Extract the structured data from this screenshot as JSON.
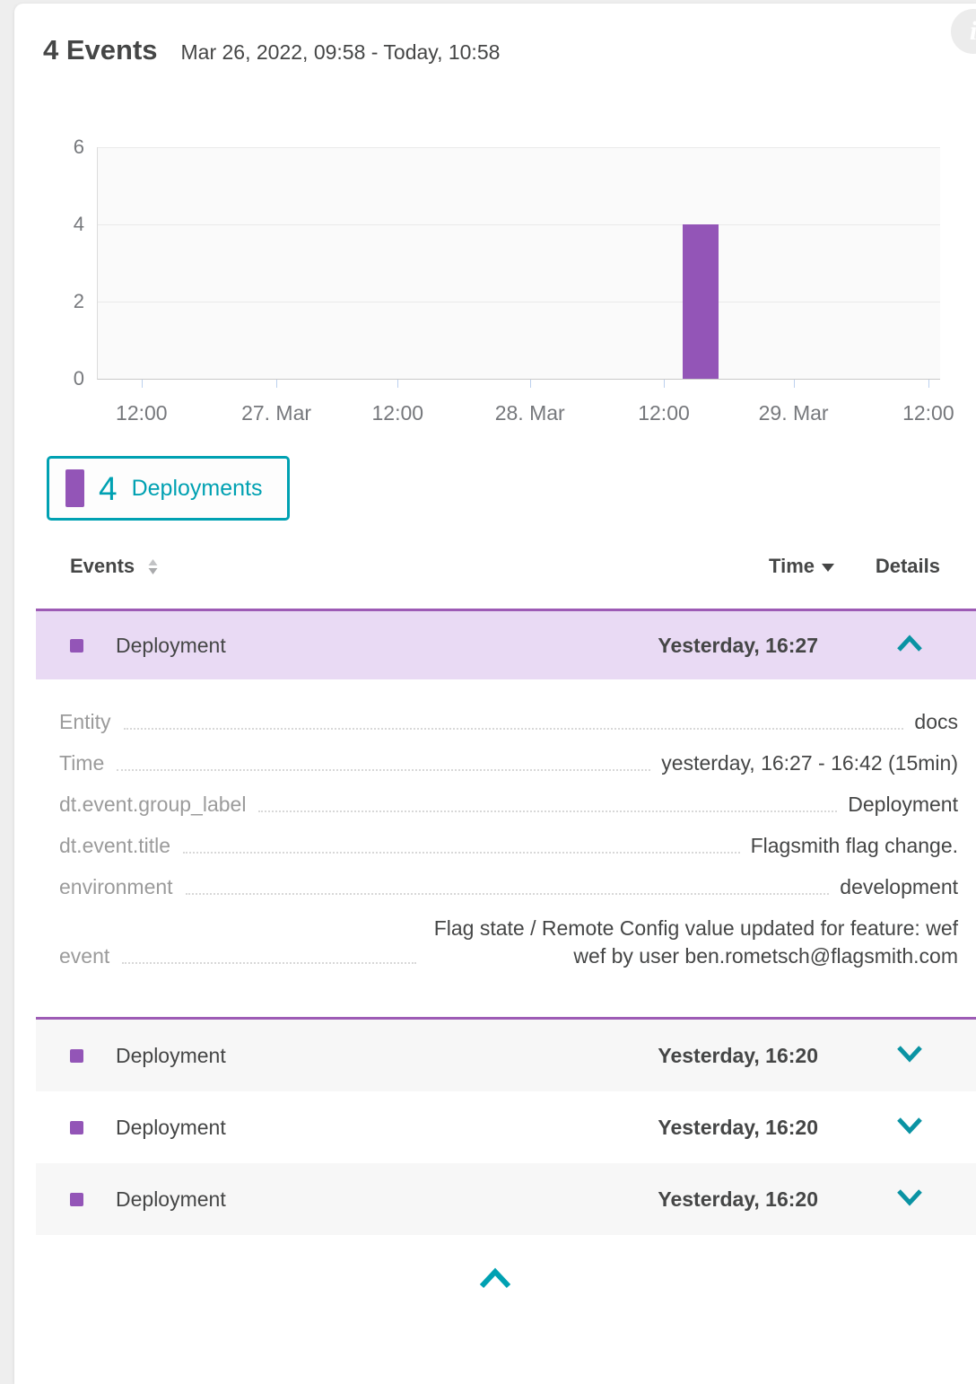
{
  "header": {
    "title": "4 Events",
    "timeframe": "Mar 26, 2022, 09:58 - Today, 10:58"
  },
  "chart_data": {
    "type": "bar",
    "title": "",
    "xlabel": "",
    "ylabel": "",
    "ylim": [
      0,
      6
    ],
    "y_ticks": [
      0,
      2,
      4,
      6
    ],
    "grid": true,
    "plot_bg": "#fafafa",
    "legend_position": "below",
    "x_ticks": [
      {
        "pos": 0.052,
        "label": "12:00"
      },
      {
        "pos": 0.212,
        "label": "27. Mar"
      },
      {
        "pos": 0.356,
        "label": "12:00"
      },
      {
        "pos": 0.513,
        "label": "28. Mar"
      },
      {
        "pos": 0.672,
        "label": "12:00"
      },
      {
        "pos": 0.826,
        "label": "29. Mar"
      },
      {
        "pos": 0.986,
        "label": "12:00"
      }
    ],
    "series": [
      {
        "name": "Deployments",
        "color": "#9355b7",
        "bars": [
          {
            "pos": 0.694,
            "width_frac": 0.043,
            "value": 4,
            "x_position": "28. Mar, early afternoon"
          }
        ]
      }
    ]
  },
  "legend": {
    "count": "4",
    "label": "Deployments",
    "accent": "#00a1b2",
    "swatch_color": "#9355b7"
  },
  "table": {
    "columns": {
      "events": "Events",
      "time": "Time",
      "details": "Details"
    },
    "rows": [
      {
        "label": "Deployment",
        "time": "Yesterday, 16:27",
        "expanded": true,
        "details": [
          {
            "key": "Entity",
            "value": "docs"
          },
          {
            "key": "Time",
            "value": "yesterday, 16:27 - 16:42 (15min)"
          },
          {
            "key": "dt.event.group_label",
            "value": "Deployment"
          },
          {
            "key": "dt.event.title",
            "value": "Flagsmith flag change."
          },
          {
            "key": "environment",
            "value": "development"
          },
          {
            "key": "event",
            "value": "Flag state / Remote Config value updated for feature: wefwef by user ben.rometsch@flagsmith.com"
          }
        ]
      },
      {
        "label": "Deployment",
        "time": "Yesterday, 16:20",
        "expanded": false
      },
      {
        "label": "Deployment",
        "time": "Yesterday, 16:20",
        "expanded": false
      },
      {
        "label": "Deployment",
        "time": "Yesterday, 16:20",
        "expanded": false
      }
    ]
  },
  "icons": {
    "info": "info-circle",
    "sort": "sort-arrows",
    "time_filter": "triangle-down",
    "expanded_row": "chevron-up",
    "collapsed_row": "chevron-down",
    "collapse_panel": "chevron-up"
  },
  "colors": {
    "accent_teal": "#00a1b2",
    "event_purple": "#9355b7",
    "expanded_row_bg": "#e9daf4",
    "expanded_border": "#9d5bb5",
    "zebra_row_bg": "#f7f7f7",
    "text_dark": "#454646",
    "text_gray": "#9b9b9b"
  }
}
